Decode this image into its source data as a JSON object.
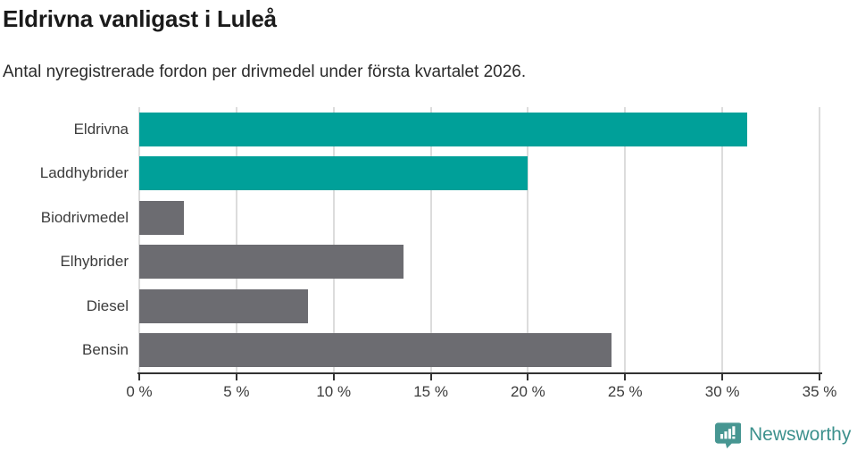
{
  "header": {
    "title": "Eldrivna vanligast i Luleå",
    "subtitle": "Antal nyregistrerade fordon per drivmedel under första kvartalet 2026."
  },
  "chart_data": {
    "type": "bar",
    "orientation": "horizontal",
    "title": "Eldrivna vanligast i Luleå",
    "subtitle": "Antal nyregistrerade fordon per drivmedel under första kvartalet 2026.",
    "categories": [
      "Eldrivna",
      "Laddhybrider",
      "Biodrivmedel",
      "Elhybrider",
      "Diesel",
      "Bensin"
    ],
    "values": [
      31.3,
      20.0,
      2.3,
      13.6,
      8.7,
      24.3
    ],
    "unit": "%",
    "xlim": [
      0,
      35
    ],
    "x_ticks": [
      0,
      5,
      10,
      15,
      20,
      25,
      30,
      35
    ],
    "x_tick_labels": [
      "0 %",
      "5 %",
      "10 %",
      "15 %",
      "20 %",
      "25 %",
      "30 %",
      "35 %"
    ],
    "grid": true,
    "legend": "none",
    "colors": {
      "highlight": "#00a099",
      "default": "#6c6c71"
    },
    "bar_color_keys": [
      "highlight",
      "highlight",
      "default",
      "default",
      "default",
      "default"
    ]
  },
  "footer": {
    "brand": "Newsworthy",
    "brand_color": "#3d918d",
    "icon": "newsworthy-logo-icon",
    "icon_color": "#479692"
  }
}
